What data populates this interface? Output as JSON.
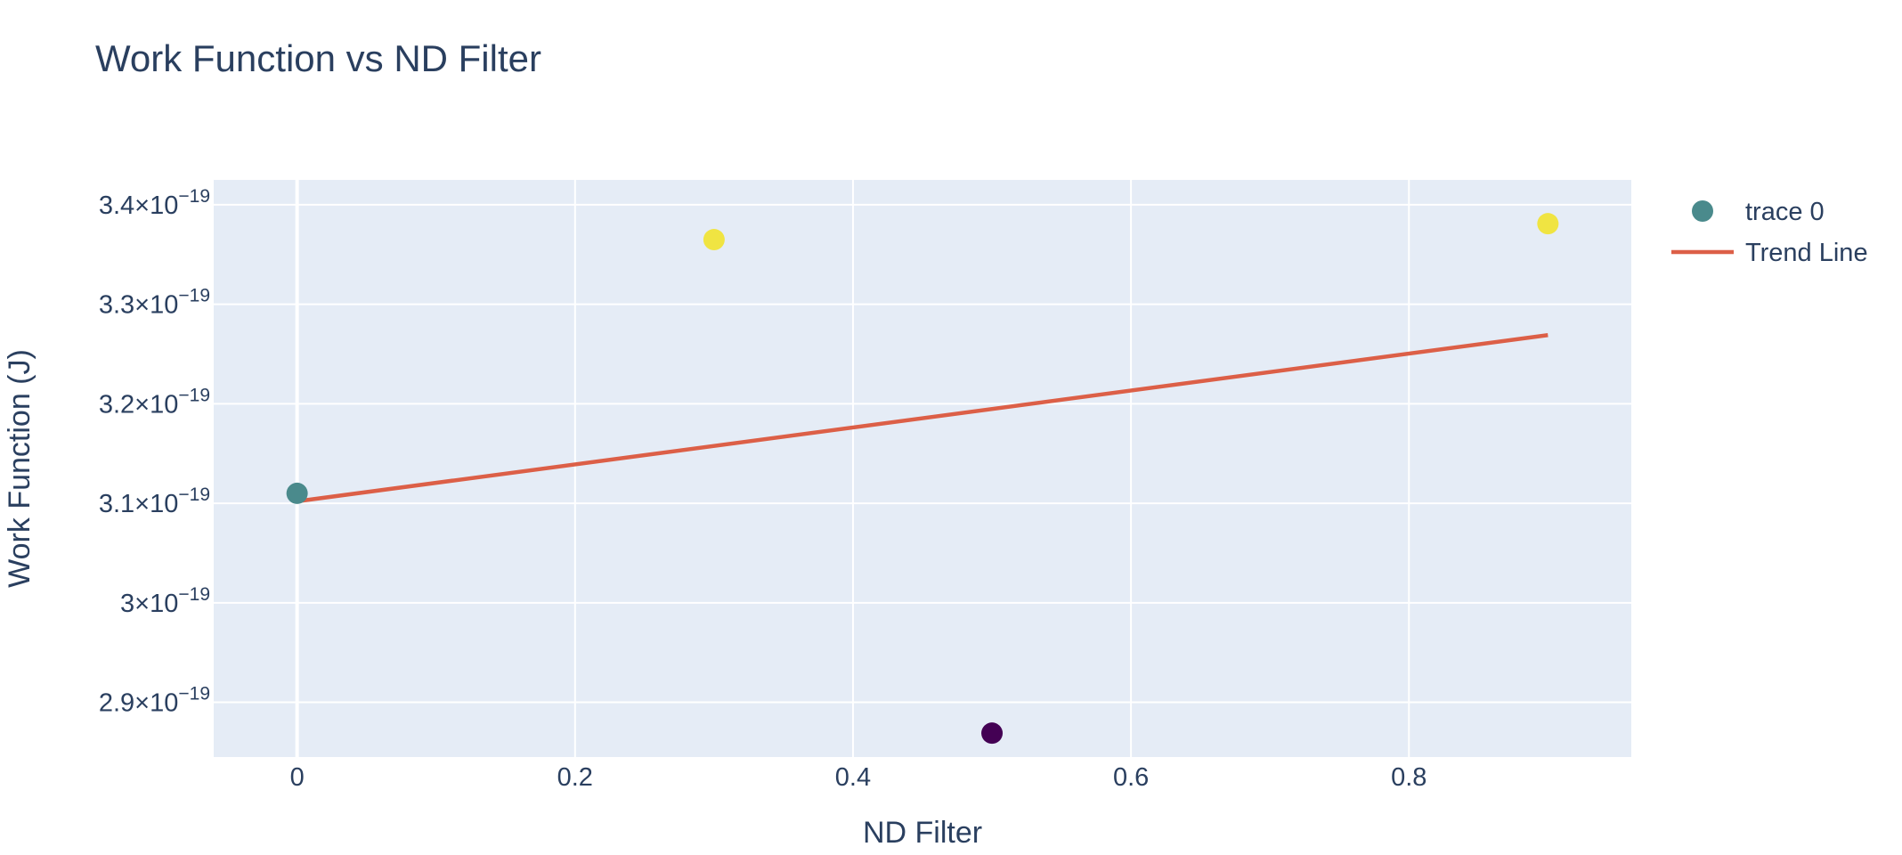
{
  "chart_data": {
    "type": "scatter",
    "title": "Work Function vs ND Filter",
    "xlabel": "ND Filter",
    "ylabel": "Work Function (J)",
    "xlim": [
      -0.06,
      0.96
    ],
    "ylim": [
      2.845e-19,
      3.425e-19
    ],
    "xticks": [
      0,
      0.2,
      0.4,
      0.6,
      0.8
    ],
    "xtick_labels": [
      "0",
      "0.2",
      "0.4",
      "0.6",
      "0.8"
    ],
    "yticks": [
      2.9e-19,
      3e-19,
      3.1e-19,
      3.2e-19,
      3.3e-19,
      3.4e-19
    ],
    "ytick_labels": [
      {
        "mantissa": "2.9×10",
        "exp": "−19"
      },
      {
        "mantissa": "3×10",
        "exp": "−19"
      },
      {
        "mantissa": "3.1×10",
        "exp": "−19"
      },
      {
        "mantissa": "3.2×10",
        "exp": "−19"
      },
      {
        "mantissa": "3.3×10",
        "exp": "−19"
      },
      {
        "mantissa": "3.4×10",
        "exp": "−19"
      }
    ],
    "grid": true,
    "legend_position": "top-right",
    "series": [
      {
        "name": "trace 0",
        "mode": "markers",
        "legend_color": "#4a8a8c",
        "points": [
          {
            "x": 0.0,
            "y": 3.11e-19,
            "color": "#4a8a8c"
          },
          {
            "x": 0.3,
            "y": 3.365e-19,
            "color": "#f0e442"
          },
          {
            "x": 0.5,
            "y": 2.869e-19,
            "color": "#440154"
          },
          {
            "x": 0.9,
            "y": 3.381e-19,
            "color": "#f0e442"
          }
        ]
      },
      {
        "name": "Trend Line",
        "mode": "lines",
        "color": "#dc5f47",
        "x": [
          0.0,
          0.9
        ],
        "y": [
          3.102e-19,
          3.269e-19
        ]
      }
    ],
    "colors": {
      "plot_background": "#e5ecf6",
      "grid": "#ffffff",
      "text": "#2a3f5f"
    }
  }
}
